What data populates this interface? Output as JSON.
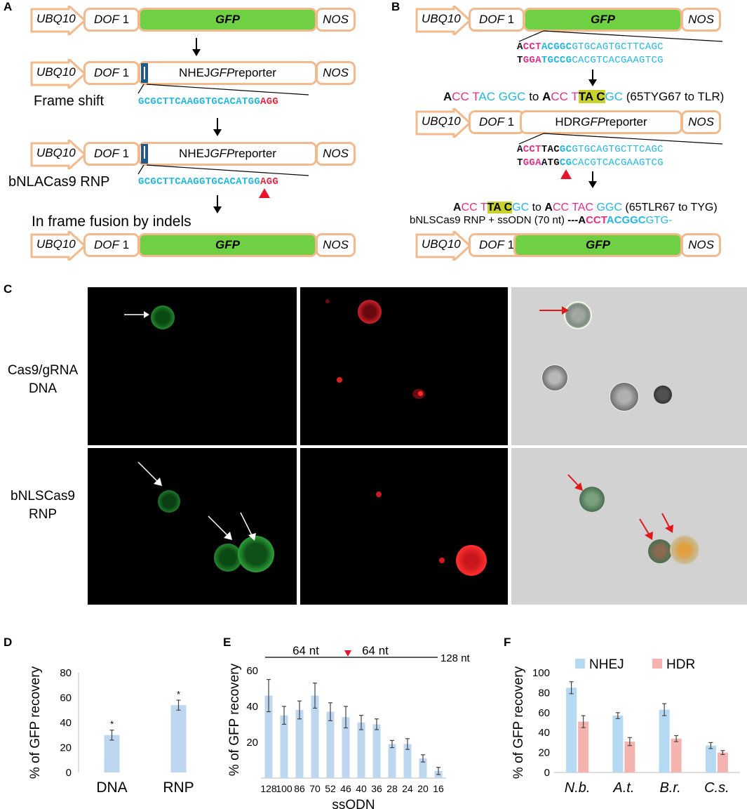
{
  "panels": {
    "A": "A",
    "B": "B",
    "C": "C",
    "D": "D",
    "E": "E",
    "F": "F"
  },
  "constructs": {
    "ubq": "UBQ10",
    "dof": "DOF",
    "dof_num": "1",
    "gfp": "GFP",
    "nos": "NOS",
    "nhej_pre": "NHEJ ",
    "nhej_gfp": "GFP",
    "nhej_post": " reporter",
    "hdr_pre": "HDR ",
    "hdr_gfp": "GFP",
    "hdr_post": " reporter"
  },
  "panelA": {
    "frame_shift": "Frame shift",
    "seq1_cyan": "GCGCTTCAAGGTGCACATGG",
    "seq1_red": "AGG",
    "rnp_label": "bNLACas9 RNP",
    "seq2_cyan": "GCGCTTCAAGGTGCACATGG",
    "seq2_red": "AGG",
    "in_frame": "In frame fusion by indels"
  },
  "panelB": {
    "top1": {
      "a": "A",
      "b": "CCT",
      "c": "ACGGC",
      "d": "GTGCAGTGCTTCAGC"
    },
    "top2": {
      "a": "T",
      "b": "GGA",
      "c": "TGCCG",
      "d": "CACGTCACGAAGTCG"
    },
    "mut_line": {
      "a": "A",
      "b": "CC ",
      "c": "T",
      "d": "AC ",
      "e": "GGC",
      "f": " to ",
      "g": "A",
      "h": "CC ",
      "i": "T",
      "j": "TA C",
      "k": "GC",
      "l": " (65TYG67 to TLR)"
    },
    "mid1": {
      "a": "A",
      "b": "CCT",
      "c": "TAC",
      "d": "GC",
      "e": "GTGCAGTGCTTCAGC"
    },
    "mid2": {
      "a": "T",
      "b": "GGA",
      "c": "ATG",
      "d": "CG",
      "e": "CACGTCACGAAGTCG"
    },
    "rev_line": {
      "a": "A",
      "b": "CC ",
      "c": "T",
      "d": "TA C",
      "e": "GC",
      "f": " to ",
      "g": "A",
      "h": "CC ",
      "i": "TAC ",
      "j": "GGC",
      "k": " (65TLR67 to TYG)"
    },
    "ssodn_line": {
      "a": "bNLSCas9 RNP + ssODN (70 nt) ",
      "b": "---",
      "c": "A",
      "d": "CCT",
      "e": "ACGGC",
      "f": "GTG-"
    }
  },
  "panelC": {
    "row1": [
      "Cas9/gRNA",
      "DNA"
    ],
    "row2": [
      "bNLSCas9",
      "RNP"
    ]
  },
  "chart_data": [
    {
      "type": "bar",
      "panel": "D",
      "categories": [
        "DNA",
        "RNP"
      ],
      "values": [
        30,
        54
      ],
      "errors": [
        4,
        4
      ],
      "significance": [
        "*",
        "*"
      ],
      "ylabel": "% of GFP recovery",
      "ylim": [
        0,
        80
      ],
      "yticks": [
        0,
        20,
        40,
        60,
        80
      ],
      "color": "#bcd7ef"
    },
    {
      "type": "bar",
      "panel": "E",
      "categories": [
        "128",
        "100",
        "86",
        "70",
        "52",
        "46",
        "40",
        "36",
        "28",
        "24",
        "20",
        "16"
      ],
      "values": [
        46,
        35,
        38,
        46,
        37,
        34,
        31,
        30,
        19,
        19,
        11,
        4
      ],
      "errors": [
        9,
        5,
        5,
        7,
        5,
        6,
        4,
        3,
        2,
        3,
        2,
        2
      ],
      "ylabel": "% of GFP recovery",
      "xlabel": "ssODN",
      "ylim": [
        0,
        65
      ],
      "yticks": [
        20,
        40,
        60
      ],
      "annotation": {
        "left": "64 nt",
        "right": "64 nt",
        "total": "128 nt"
      },
      "color": "#bcd7ef"
    },
    {
      "type": "bar",
      "panel": "F",
      "categories": [
        "N.b.",
        "A.t.",
        "B.r.",
        "C.s."
      ],
      "series": [
        {
          "name": "NHEJ",
          "values": [
            85,
            57,
            63,
            27
          ],
          "errors": [
            6,
            3,
            6,
            3
          ],
          "color": "#b5d9f3"
        },
        {
          "name": "HDR",
          "values": [
            51,
            31,
            34,
            20
          ],
          "errors": [
            6,
            4,
            3,
            2
          ],
          "color": "#f5b3b0"
        }
      ],
      "ylabel": "% of GFP recovery",
      "ylim": [
        0,
        100
      ],
      "yticks": [
        0,
        20,
        40,
        60,
        80,
        100
      ],
      "legend": "top"
    }
  ]
}
